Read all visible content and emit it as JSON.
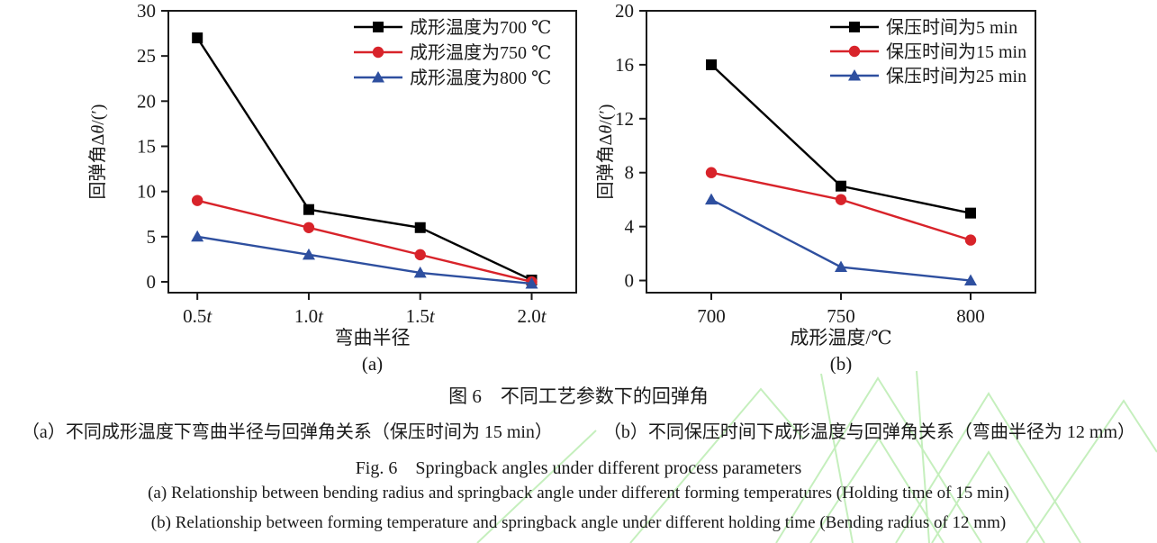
{
  "figure": {
    "title_zh": "图 6　不同工艺参数下的回弹角",
    "caption_a_zh": "（a）不同成形温度下弯曲半径与回弹角关系（保压时间为 15 min）",
    "caption_b_zh": "（b）不同保压时间下成形温度与回弹角关系（弯曲半径为 12 mm）",
    "title_en": "Fig. 6　Springback angles under different process parameters",
    "caption_a_en": "(a)  Relationship between bending radius and springback angle under different forming temperatures (Holding time of 15 min)",
    "caption_b_en": "(b)  Relationship between forming temperature and springback angle under different holding time  (Bending radius of 12 mm)"
  },
  "colors": {
    "series_black": "#000000",
    "series_red": "#d8232a",
    "series_blue": "#2e4f9f",
    "axis": "#1a1a1a",
    "watermark_green": "#c5efbd"
  },
  "chart_data": [
    {
      "type": "line",
      "panel": "(a)",
      "title": "",
      "xlabel": "弯曲半径",
      "ylabel": "回弹角Δθ/(′)",
      "x": [
        0.5,
        1.0,
        1.5,
        2.0
      ],
      "x_tick_labels": [
        "0.5t",
        "1.0t",
        "1.5t",
        "2.0t"
      ],
      "xlim": [
        0.37,
        2.2
      ],
      "yticks": [
        0,
        5,
        10,
        15,
        20,
        25,
        30
      ],
      "ylim": [
        -1.2,
        30
      ],
      "grid": false,
      "legend_position": "top-right-inside",
      "series": [
        {
          "name": "成形温度为700 ℃",
          "marker": "square",
          "color": "#000000",
          "values": [
            27,
            8,
            6,
            0.2
          ]
        },
        {
          "name": "成形温度为750 ℃",
          "marker": "circle",
          "color": "#d8232a",
          "values": [
            9,
            6,
            3,
            0
          ]
        },
        {
          "name": "成形温度为800 ℃",
          "marker": "triangle",
          "color": "#2e4f9f",
          "values": [
            5,
            3,
            1,
            -0.2
          ]
        }
      ]
    },
    {
      "type": "line",
      "panel": "(b)",
      "title": "",
      "xlabel": "成形温度/℃",
      "ylabel": "回弹角Δθ/(′)",
      "x": [
        700,
        750,
        800
      ],
      "x_tick_labels": [
        "700",
        "750",
        "800"
      ],
      "xlim": [
        675,
        825
      ],
      "yticks": [
        0,
        4,
        8,
        12,
        16,
        20
      ],
      "ylim": [
        -0.9,
        20
      ],
      "grid": false,
      "legend_position": "top-right-inside",
      "series": [
        {
          "name": "保压时间为5 min",
          "marker": "square",
          "color": "#000000",
          "values": [
            16,
            7,
            5
          ]
        },
        {
          "name": "保压时间为15 min",
          "marker": "circle",
          "color": "#d8232a",
          "values": [
            8,
            6,
            3
          ]
        },
        {
          "name": "保压时间为25 min",
          "marker": "triangle",
          "color": "#2e4f9f",
          "values": [
            6,
            1,
            0
          ]
        }
      ]
    }
  ]
}
